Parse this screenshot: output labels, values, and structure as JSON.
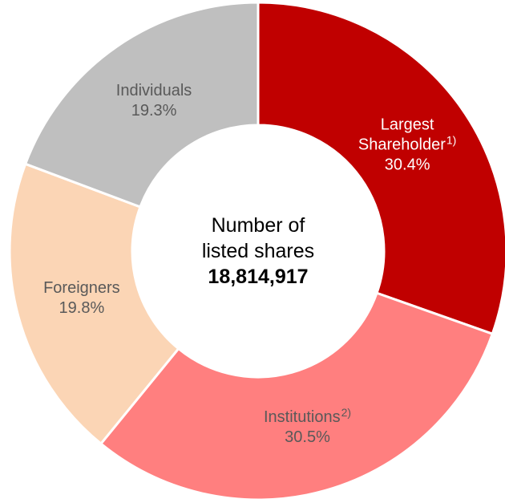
{
  "chart_data": {
    "type": "donut",
    "categories": [
      "Largest Shareholder",
      "Institutions",
      "Foreigners",
      "Individuals"
    ],
    "category_notes": [
      "1)",
      "2)",
      null,
      null
    ],
    "values": [
      30.4,
      30.5,
      19.8,
      19.3
    ],
    "value_labels": [
      "30.4%",
      "30.5%",
      "19.8%",
      "19.3%"
    ],
    "colors": [
      "#c00000",
      "#ff7f7f",
      "#fbd5b5",
      "#bfbfbf"
    ],
    "label_colors": [
      "#ffffff",
      "#595959",
      "#595959",
      "#595959"
    ],
    "center_text": [
      "Number of",
      "listed shares"
    ],
    "center_value": {
      "value": 18814917,
      "label": "18,814,917"
    }
  }
}
